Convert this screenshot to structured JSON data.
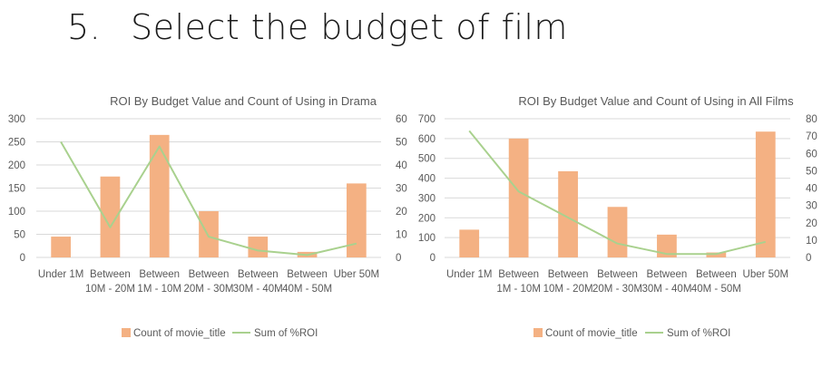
{
  "slide": {
    "number": "5.",
    "title": "Select the budget of film"
  },
  "colors": {
    "bar": "#f4b183",
    "line": "#a9d18e",
    "grid": "#d9d9d9",
    "text": "#595959"
  },
  "chart_data": [
    {
      "type": "bar",
      "title": "ROI By Budget Value and Count of Using in Drama",
      "categories": [
        [
          "Under 1M"
        ],
        [
          "Between",
          "10M - 20M"
        ],
        [
          "Between",
          "1M - 10M"
        ],
        [
          "Between",
          "20M - 30M"
        ],
        [
          "Between",
          "30M - 40M"
        ],
        [
          "Between",
          "40M - 50M"
        ],
        [
          "Uber 50M"
        ]
      ],
      "series": [
        {
          "name": "Count of movie_title",
          "type": "bar",
          "axis": "left",
          "values": [
            45,
            175,
            265,
            100,
            45,
            12,
            160
          ]
        },
        {
          "name": "Sum of %ROI",
          "type": "line",
          "axis": "right",
          "values": [
            50,
            13,
            48,
            9,
            3,
            1,
            6
          ]
        }
      ],
      "y_left": {
        "min": 0,
        "max": 300,
        "ticks": [
          0,
          50,
          100,
          150,
          200,
          250,
          300
        ]
      },
      "y_right": {
        "min": 0,
        "max": 60,
        "ticks": [
          0,
          10,
          20,
          30,
          40,
          50,
          60
        ]
      },
      "grid": true,
      "legend": "bottom"
    },
    {
      "type": "bar",
      "title": "ROI By Budget Value and Count of Using in All Films",
      "categories": [
        [
          "Under 1M"
        ],
        [
          "Between",
          "1M - 10M"
        ],
        [
          "Between",
          "10M - 20M"
        ],
        [
          "Between",
          "20M - 30M"
        ],
        [
          "Between",
          "30M - 40M"
        ],
        [
          "Between",
          "40M - 50M"
        ],
        [
          "Uber 50M"
        ]
      ],
      "series": [
        {
          "name": "Count of movie_title",
          "type": "bar",
          "axis": "left",
          "values": [
            140,
            600,
            435,
            255,
            115,
            25,
            635
          ]
        },
        {
          "name": "Sum of %ROI",
          "type": "line",
          "axis": "right",
          "values": [
            73,
            38,
            23,
            8,
            2,
            2,
            9
          ]
        }
      ],
      "y_left": {
        "min": 0,
        "max": 700,
        "ticks": [
          0,
          100,
          200,
          300,
          400,
          500,
          600,
          700
        ]
      },
      "y_right": {
        "min": 0,
        "max": 80,
        "ticks": [
          0,
          10,
          20,
          30,
          40,
          50,
          60,
          70,
          80
        ]
      },
      "grid": true,
      "legend": "bottom"
    }
  ]
}
